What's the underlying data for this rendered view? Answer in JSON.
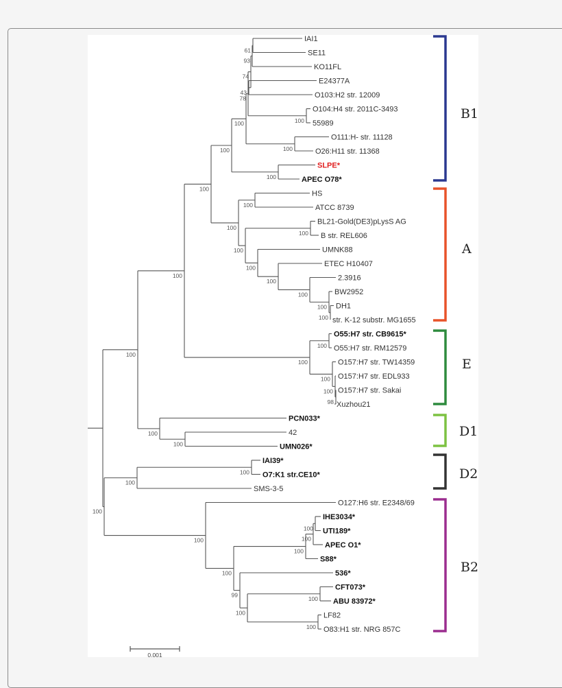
{
  "tree": {
    "leaves": [
      {
        "label": "IAI1"
      },
      {
        "label": "SE11"
      },
      {
        "label": "KO11FL"
      },
      {
        "label": "E24377A"
      },
      {
        "label": "O103:H2 str. 12009"
      },
      {
        "label": "O104:H4 str. 2011C-3493"
      },
      {
        "label": "55989"
      },
      {
        "label": "O111:H- str. 11128"
      },
      {
        "label": "O26:H11 str. 11368"
      },
      {
        "label": "SLPE*",
        "bold": true,
        "color": "#e02020"
      },
      {
        "label": "APEC O78*",
        "bold": true
      },
      {
        "label": "HS"
      },
      {
        "label": "ATCC 8739"
      },
      {
        "label": "BL21-Gold(DE3)pLysS AG"
      },
      {
        "label": "B str. REL606"
      },
      {
        "label": "UMNK88"
      },
      {
        "label": "ETEC H10407"
      },
      {
        "label": "2.3916"
      },
      {
        "label": "BW2952"
      },
      {
        "label": "DH1"
      },
      {
        "label": "str. K-12 substr. MG1655"
      },
      {
        "label": "O55:H7 str. CB9615*",
        "bold": true
      },
      {
        "label": "O55:H7 str. RM12579"
      },
      {
        "label": "O157:H7 str. TW14359"
      },
      {
        "label": "O157:H7 str. EDL933"
      },
      {
        "label": "O157:H7 str. Sakai"
      },
      {
        "label": "Xuzhou21"
      },
      {
        "label": "PCN033*",
        "bold": true
      },
      {
        "label": "42"
      },
      {
        "label": "UMN026*",
        "bold": true
      },
      {
        "label": "IAI39*",
        "bold": true
      },
      {
        "label": "O7:K1 str.CE10*",
        "bold": true
      },
      {
        "label": "SMS-3-5"
      },
      {
        "label": "O127:H6 str. E2348/69"
      },
      {
        "label": "IHE3034*",
        "bold": true
      },
      {
        "label": "UTI189*",
        "bold": true
      },
      {
        "label": "APEC O1*",
        "bold": true
      },
      {
        "label": "S88*",
        "bold": true
      },
      {
        "label": "536*",
        "bold": true
      },
      {
        "label": "CFT073*",
        "bold": true
      },
      {
        "label": "ABU 83972*",
        "bold": true
      },
      {
        "label": "LF82"
      },
      {
        "label": "O83:H1 str. NRG 857C"
      }
    ],
    "root": {
      "id": "root",
      "children": [
        {
          "id": "abed1",
          "bs": "100",
          "children": [
            {
              "id": "abe",
              "bs": "100",
              "children": [
                {
                  "id": "b1a",
                  "bs": "100",
                  "children": [
                    {
                      "id": "b1",
                      "bs": "100",
                      "children": [
                        {
                          "id": "core",
                          "bs": "100",
                          "children": [
                            {
                              "id": "n78",
                              "bs": "78",
                              "children": [
                                {
                                  "id": "n74",
                                  "bs": "74",
                                  "children": [
                                    {
                                      "id": "n93",
                                      "bs": "93",
                                      "children": [
                                        {
                                          "id": "n61",
                                          "bs": "61",
                                          "children": [
                                            0,
                                            1
                                          ]
                                        },
                                        2
                                      ]
                                    },
                                    {
                                      "id": "n43",
                                      "bs": "43",
                                      "children": [
                                        3,
                                        4
                                      ]
                                    }
                                  ]
                                },
                                {
                                  "id": "o104",
                                  "bs": "100",
                                  "children": [
                                    5,
                                    6
                                  ]
                                }
                              ]
                            },
                            {
                              "id": "o111",
                              "bs": "100",
                              "children": [
                                7,
                                8
                              ]
                            }
                          ]
                        },
                        {
                          "id": "slpe",
                          "bs": "100",
                          "children": [
                            9,
                            10
                          ]
                        }
                      ]
                    },
                    {
                      "id": "a",
                      "bs": "100",
                      "children": [
                        {
                          "id": "hs",
                          "bs": "100",
                          "children": [
                            11,
                            12
                          ]
                        },
                        {
                          "id": "a2",
                          "bs": "100",
                          "children": [
                            {
                              "id": "bl",
                              "bs": "100",
                              "children": [
                                13,
                                14
                              ]
                            },
                            {
                              "id": "a3",
                              "bs": "100",
                              "children": [
                                15,
                                {
                                  "id": "a4",
                                  "bs": "100",
                                  "children": [
                                    16,
                                    {
                                      "id": "a5",
                                      "bs": "100",
                                      "children": [
                                        17,
                                        {
                                          "id": "k",
                                          "bs": "100",
                                          "children": [
                                            18,
                                            {
                                              "id": "k2",
                                              "bs": "100",
                                              "children": [
                                                19,
                                                20
                                              ]
                                            }
                                          ]
                                        }
                                      ]
                                    }
                                  ]
                                }
                              ]
                            }
                          ]
                        }
                      ]
                    }
                  ]
                },
                {
                  "id": "e",
                  "bs": "100",
                  "children": [
                    {
                      "id": "o55",
                      "bs": "100",
                      "children": [
                        21,
                        22
                      ]
                    },
                    {
                      "id": "o157",
                      "bs": "100",
                      "children": [
                        23,
                        {
                          "id": "o157b",
                          "bs": "100",
                          "children": [
                            24,
                            {
                              "id": "o157c",
                              "bs": "98",
                              "children": [
                                25,
                                26
                              ]
                            }
                          ]
                        }
                      ]
                    }
                  ]
                }
              ]
            },
            {
              "id": "d1",
              "bs": "100",
              "children": [
                27,
                {
                  "id": "n42",
                  "bs": "100",
                  "children": [
                    28,
                    29
                  ]
                }
              ]
            }
          ]
        },
        {
          "id": "d2b2",
          "bs": "100",
          "children": [
            {
              "id": "d2",
              "bs": "100",
              "children": [
                {
                  "id": "iai39",
                  "bs": "100",
                  "children": [
                    30,
                    31
                  ]
                },
                32
              ]
            },
            {
              "id": "b2",
              "bs": "100",
              "children": [
                33,
                {
                  "id": "b2a",
                  "bs": "100",
                  "children": [
                    {
                      "id": "ex",
                      "bs": "100",
                      "children": [
                        {
                          "id": "ex2",
                          "bs": "100",
                          "children": [
                            {
                              "id": "ex3",
                              "bs": "100",
                              "children": [
                                34,
                                35
                              ]
                            },
                            36
                          ]
                        },
                        37
                      ]
                    },
                    {
                      "id": "n99",
                      "bs": "99",
                      "children": [
                        38,
                        {
                          "id": "nc",
                          "bs": "100",
                          "children": [
                            {
                              "id": "cft",
                              "bs": "100",
                              "children": [
                                39,
                                40
                              ]
                            },
                            {
                              "id": "lf",
                              "bs": "100",
                              "children": [
                                41,
                                42
                              ]
                            }
                          ]
                        }
                      ]
                    }
                  ]
                }
              ]
            }
          ]
        }
      ]
    }
  },
  "clades": [
    {
      "label": "B1",
      "color": "#2b3990"
    },
    {
      "label": "A",
      "color": "#e8532a"
    },
    {
      "label": "E",
      "color": "#2e8b3e"
    },
    {
      "label": "D1",
      "color": "#7dc242"
    },
    {
      "label": "D2",
      "color": "#333333"
    },
    {
      "label": "B2",
      "color": "#9b2d8f"
    }
  ],
  "scale_bar": {
    "label": "0.001"
  }
}
